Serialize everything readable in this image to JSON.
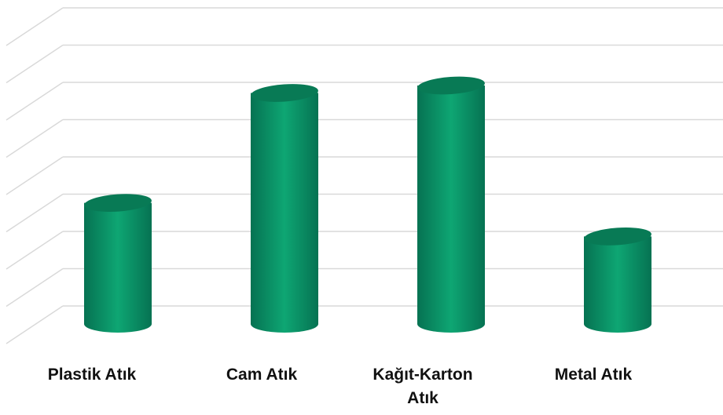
{
  "chart_data": {
    "type": "bar",
    "style": "3d-cylinder",
    "title": "",
    "xlabel": "",
    "ylabel": "",
    "grid": true,
    "ylim": [
      0,
      8
    ],
    "categories": [
      "Plastik Atık",
      "Cam Atık",
      "Kağıt-Karton Atık",
      "Metal Atık"
    ],
    "values": [
      3.25,
      6.2,
      6.4,
      2.35
    ],
    "colors": {
      "bar": "#0a9a6c",
      "bar_dark": "#066b4a",
      "bar_light": "#12b07c",
      "top": "#087a55",
      "grid": "#d9d9d9"
    }
  }
}
